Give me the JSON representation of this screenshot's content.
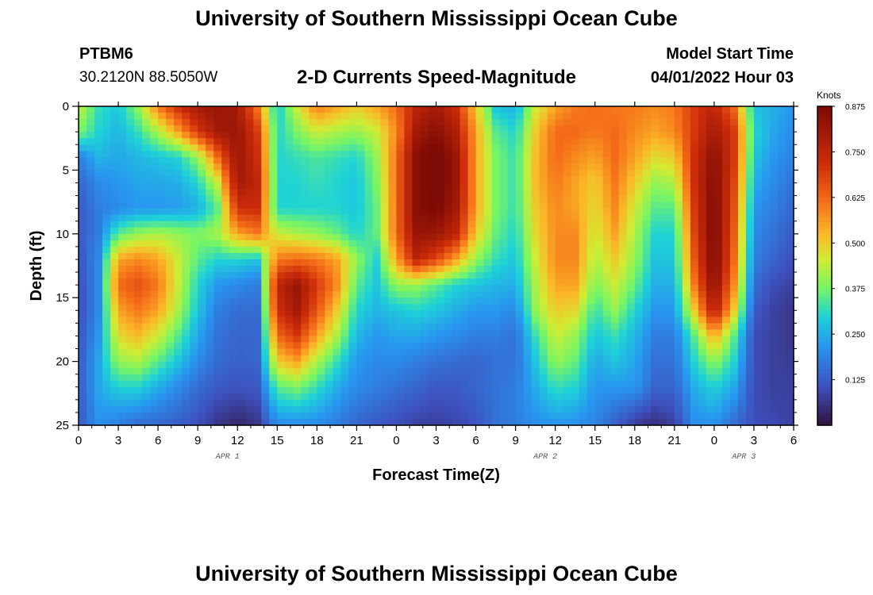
{
  "header": {
    "title": "University of Southern Mississippi Ocean Cube",
    "station_id": "PTBM6",
    "station_coords": "30.2120N  88.5050W",
    "plot_title": "2-D Currents Speed-Magnitude",
    "model_label": "Model Start Time",
    "model_time": "04/01/2022 Hour 03"
  },
  "footer": {
    "title": "University of Southern Mississippi Ocean Cube"
  },
  "chart_data": {
    "type": "heatmap",
    "title": "2-D Currents Speed-Magnitude",
    "xlabel": "Forecast Time(Z)",
    "ylabel": "Depth (ft)",
    "x_range_hours": [
      0,
      54
    ],
    "y_range_ft": [
      0,
      25
    ],
    "y_inverted": true,
    "x_ticks": [
      "0",
      "3",
      "6",
      "9",
      "12",
      "15",
      "18",
      "21",
      "0",
      "3",
      "6",
      "9",
      "12",
      "15",
      "18",
      "21",
      "0",
      "3",
      "6"
    ],
    "y_ticks": [
      "0",
      "5",
      "10",
      "15",
      "20",
      "25"
    ],
    "date_labels": [
      {
        "label": "APR 1",
        "hour": 11.25
      },
      {
        "label": "APR 2",
        "hour": 35.25
      },
      {
        "label": "APR 3",
        "hour": 50.25
      }
    ],
    "colorbar": {
      "title": "Knots",
      "min": 0,
      "max": 0.875,
      "ticks": [
        "0.875",
        "0.750",
        "0.625",
        "0.500",
        "0.375",
        "0.250",
        "0.125"
      ],
      "tick_values": [
        0.875,
        0.75,
        0.625,
        0.5,
        0.375,
        0.25,
        0.125
      ]
    },
    "grid_hours": [
      0,
      1.5,
      3,
      4.5,
      6,
      7.5,
      9,
      10.5,
      12,
      13.5,
      15,
      16.5,
      18,
      19.5,
      21,
      22.5,
      24,
      25.5,
      27,
      28.5,
      30,
      31.5,
      33,
      34.5,
      36,
      37.5,
      39,
      40.5,
      42,
      43.5,
      45,
      46.5,
      48,
      49.5,
      51,
      52.5,
      54
    ],
    "grid_depths_ft": [
      0,
      2,
      4,
      6,
      8,
      10,
      12,
      14,
      16,
      18,
      20,
      22,
      24
    ],
    "values": [
      [
        0.45,
        0.32,
        0.28,
        0.4,
        0.6,
        0.72,
        0.8,
        0.82,
        0.8,
        0.6,
        0.28,
        0.45,
        0.6,
        0.55,
        0.5,
        0.55,
        0.62,
        0.75,
        0.8,
        0.72,
        0.5,
        0.28,
        0.25,
        0.45,
        0.55,
        0.6,
        0.62,
        0.6,
        0.6,
        0.58,
        0.6,
        0.7,
        0.75,
        0.62,
        0.28,
        0.25,
        0.22
      ],
      [
        0.38,
        0.3,
        0.26,
        0.32,
        0.42,
        0.55,
        0.7,
        0.8,
        0.82,
        0.7,
        0.3,
        0.38,
        0.45,
        0.42,
        0.4,
        0.45,
        0.58,
        0.8,
        0.85,
        0.78,
        0.55,
        0.35,
        0.3,
        0.5,
        0.62,
        0.62,
        0.6,
        0.62,
        0.58,
        0.55,
        0.58,
        0.7,
        0.8,
        0.7,
        0.3,
        0.24,
        0.2
      ],
      [
        0.18,
        0.26,
        0.24,
        0.26,
        0.28,
        0.3,
        0.4,
        0.62,
        0.82,
        0.72,
        0.3,
        0.32,
        0.34,
        0.32,
        0.3,
        0.4,
        0.62,
        0.85,
        0.9,
        0.82,
        0.55,
        0.38,
        0.32,
        0.52,
        0.62,
        0.58,
        0.55,
        0.62,
        0.55,
        0.48,
        0.5,
        0.72,
        0.85,
        0.7,
        0.28,
        0.22,
        0.18
      ],
      [
        0.14,
        0.2,
        0.22,
        0.24,
        0.24,
        0.25,
        0.3,
        0.45,
        0.8,
        0.75,
        0.3,
        0.3,
        0.32,
        0.3,
        0.28,
        0.38,
        0.62,
        0.85,
        0.9,
        0.82,
        0.55,
        0.38,
        0.32,
        0.52,
        0.6,
        0.55,
        0.5,
        0.6,
        0.5,
        0.4,
        0.42,
        0.72,
        0.86,
        0.68,
        0.25,
        0.2,
        0.16
      ],
      [
        0.12,
        0.18,
        0.2,
        0.22,
        0.22,
        0.23,
        0.25,
        0.35,
        0.72,
        0.72,
        0.3,
        0.3,
        0.3,
        0.3,
        0.28,
        0.36,
        0.62,
        0.85,
        0.88,
        0.8,
        0.55,
        0.38,
        0.32,
        0.5,
        0.58,
        0.55,
        0.48,
        0.58,
        0.45,
        0.35,
        0.35,
        0.7,
        0.88,
        0.66,
        0.22,
        0.18,
        0.14
      ],
      [
        0.12,
        0.18,
        0.35,
        0.4,
        0.42,
        0.4,
        0.38,
        0.42,
        0.55,
        0.6,
        0.45,
        0.42,
        0.4,
        0.36,
        0.3,
        0.36,
        0.62,
        0.82,
        0.82,
        0.75,
        0.5,
        0.36,
        0.3,
        0.48,
        0.58,
        0.58,
        0.45,
        0.55,
        0.42,
        0.3,
        0.3,
        0.68,
        0.88,
        0.64,
        0.2,
        0.16,
        0.12
      ],
      [
        0.11,
        0.2,
        0.55,
        0.58,
        0.55,
        0.45,
        0.35,
        0.3,
        0.3,
        0.28,
        0.6,
        0.62,
        0.6,
        0.55,
        0.4,
        0.3,
        0.55,
        0.75,
        0.68,
        0.55,
        0.4,
        0.32,
        0.28,
        0.45,
        0.58,
        0.58,
        0.42,
        0.5,
        0.4,
        0.28,
        0.28,
        0.65,
        0.88,
        0.62,
        0.18,
        0.14,
        0.1
      ],
      [
        0.1,
        0.2,
        0.62,
        0.66,
        0.6,
        0.45,
        0.3,
        0.22,
        0.2,
        0.18,
        0.75,
        0.82,
        0.7,
        0.58,
        0.35,
        0.28,
        0.4,
        0.4,
        0.35,
        0.3,
        0.28,
        0.26,
        0.25,
        0.42,
        0.55,
        0.55,
        0.38,
        0.45,
        0.36,
        0.25,
        0.25,
        0.6,
        0.85,
        0.58,
        0.15,
        0.1,
        0.08
      ],
      [
        0.1,
        0.2,
        0.55,
        0.6,
        0.55,
        0.42,
        0.28,
        0.18,
        0.15,
        0.15,
        0.72,
        0.8,
        0.65,
        0.5,
        0.3,
        0.26,
        0.28,
        0.3,
        0.28,
        0.25,
        0.22,
        0.22,
        0.2,
        0.4,
        0.5,
        0.48,
        0.32,
        0.4,
        0.3,
        0.22,
        0.22,
        0.5,
        0.78,
        0.5,
        0.12,
        0.08,
        0.06
      ],
      [
        0.11,
        0.22,
        0.48,
        0.52,
        0.45,
        0.35,
        0.24,
        0.16,
        0.14,
        0.14,
        0.62,
        0.7,
        0.55,
        0.42,
        0.26,
        0.22,
        0.24,
        0.24,
        0.22,
        0.2,
        0.18,
        0.18,
        0.16,
        0.32,
        0.45,
        0.4,
        0.28,
        0.32,
        0.26,
        0.18,
        0.18,
        0.35,
        0.55,
        0.35,
        0.1,
        0.08,
        0.06
      ],
      [
        0.12,
        0.24,
        0.4,
        0.42,
        0.35,
        0.28,
        0.2,
        0.15,
        0.13,
        0.14,
        0.5,
        0.55,
        0.42,
        0.32,
        0.22,
        0.2,
        0.2,
        0.18,
        0.16,
        0.15,
        0.14,
        0.16,
        0.16,
        0.28,
        0.4,
        0.36,
        0.24,
        0.28,
        0.24,
        0.16,
        0.16,
        0.3,
        0.4,
        0.3,
        0.1,
        0.08,
        0.07
      ],
      [
        0.12,
        0.24,
        0.3,
        0.3,
        0.25,
        0.2,
        0.15,
        0.12,
        0.11,
        0.12,
        0.35,
        0.38,
        0.32,
        0.25,
        0.2,
        0.18,
        0.16,
        0.14,
        0.12,
        0.12,
        0.14,
        0.16,
        0.18,
        0.25,
        0.32,
        0.3,
        0.22,
        0.22,
        0.22,
        0.14,
        0.14,
        0.25,
        0.3,
        0.24,
        0.1,
        0.08,
        0.08
      ],
      [
        0.12,
        0.22,
        0.22,
        0.2,
        0.18,
        0.15,
        0.12,
        0.08,
        0.06,
        0.08,
        0.25,
        0.26,
        0.24,
        0.2,
        0.16,
        0.14,
        0.12,
        0.1,
        0.09,
        0.1,
        0.12,
        0.16,
        0.18,
        0.22,
        0.25,
        0.24,
        0.2,
        0.16,
        0.12,
        0.08,
        0.1,
        0.22,
        0.24,
        0.18,
        0.1,
        0.09,
        0.08
      ]
    ]
  }
}
